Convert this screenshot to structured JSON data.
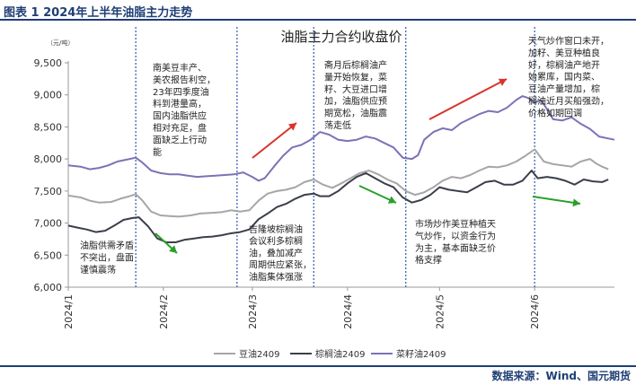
{
  "header": {
    "title": "图表 1  2024年上半年油脂主力走势"
  },
  "footer": {
    "source": "数据来源：Wind、国元期货"
  },
  "colors": {
    "brand": "#1f3f74",
    "soy": "#a6a6a6",
    "palm": "#3a3f4a",
    "rape": "#7b73b5",
    "arrow_up": "#d8342c",
    "arrow_down": "#2aa02b",
    "divider": "#3d63b6"
  },
  "chart_data": {
    "type": "line",
    "title": "油脂主力合约收盘价",
    "ylabel": "（元/吨）",
    "ylim": [
      6000,
      9500
    ],
    "yticks": [
      "6,000",
      "6,500",
      "7,000",
      "7,500",
      "8,000",
      "8,500",
      "9,000",
      "9,500"
    ],
    "xticks": [
      "2024/1",
      "2024/2",
      "2024/3",
      "2024/4",
      "2024/5",
      "2024/6"
    ],
    "xlim_days": [
      0,
      178
    ],
    "tick_days": [
      0,
      31,
      60,
      91,
      121,
      152
    ],
    "divider_days": [
      22,
      55,
      80,
      110,
      152
    ],
    "grid": false,
    "legend_position": "bottom",
    "series": [
      {
        "name": "豆油2409",
        "points": [
          [
            0,
            7430
          ],
          [
            4,
            7400
          ],
          [
            7,
            7350
          ],
          [
            10,
            7320
          ],
          [
            14,
            7330
          ],
          [
            17,
            7380
          ],
          [
            20,
            7420
          ],
          [
            22,
            7450
          ],
          [
            24,
            7360
          ],
          [
            27,
            7180
          ],
          [
            30,
            7120
          ],
          [
            33,
            7110
          ],
          [
            36,
            7100
          ],
          [
            40,
            7120
          ],
          [
            43,
            7150
          ],
          [
            47,
            7160
          ],
          [
            50,
            7170
          ],
          [
            53,
            7200
          ],
          [
            56,
            7180
          ],
          [
            59,
            7200
          ],
          [
            62,
            7350
          ],
          [
            65,
            7460
          ],
          [
            68,
            7500
          ],
          [
            71,
            7520
          ],
          [
            74,
            7560
          ],
          [
            77,
            7640
          ],
          [
            80,
            7680
          ],
          [
            83,
            7600
          ],
          [
            86,
            7550
          ],
          [
            89,
            7620
          ],
          [
            92,
            7700
          ],
          [
            95,
            7780
          ],
          [
            98,
            7820
          ],
          [
            101,
            7760
          ],
          [
            104,
            7680
          ],
          [
            107,
            7620
          ],
          [
            110,
            7500
          ],
          [
            113,
            7440
          ],
          [
            116,
            7480
          ],
          [
            119,
            7560
          ],
          [
            122,
            7660
          ],
          [
            125,
            7720
          ],
          [
            128,
            7700
          ],
          [
            131,
            7750
          ],
          [
            134,
            7820
          ],
          [
            137,
            7880
          ],
          [
            140,
            7870
          ],
          [
            143,
            7900
          ],
          [
            146,
            7960
          ],
          [
            149,
            8050
          ],
          [
            152,
            8150
          ],
          [
            155,
            7960
          ],
          [
            158,
            7920
          ],
          [
            161,
            7900
          ],
          [
            164,
            7880
          ],
          [
            167,
            7960
          ],
          [
            170,
            8000
          ],
          [
            172,
            7930
          ],
          [
            174,
            7880
          ],
          [
            176,
            7840
          ]
        ]
      },
      {
        "name": "棕榈油2409",
        "points": [
          [
            0,
            6960
          ],
          [
            3,
            6930
          ],
          [
            6,
            6900
          ],
          [
            9,
            6860
          ],
          [
            12,
            6880
          ],
          [
            15,
            6960
          ],
          [
            18,
            7050
          ],
          [
            21,
            7080
          ],
          [
            23,
            7090
          ],
          [
            26,
            6950
          ],
          [
            29,
            6760
          ],
          [
            32,
            6700
          ],
          [
            35,
            6700
          ],
          [
            38,
            6740
          ],
          [
            41,
            6760
          ],
          [
            44,
            6780
          ],
          [
            47,
            6790
          ],
          [
            50,
            6810
          ],
          [
            53,
            6840
          ],
          [
            56,
            6860
          ],
          [
            59,
            6900
          ],
          [
            62,
            7060
          ],
          [
            65,
            7150
          ],
          [
            68,
            7250
          ],
          [
            71,
            7300
          ],
          [
            74,
            7380
          ],
          [
            77,
            7440
          ],
          [
            80,
            7460
          ],
          [
            82,
            7420
          ],
          [
            85,
            7420
          ],
          [
            88,
            7500
          ],
          [
            91,
            7620
          ],
          [
            94,
            7720
          ],
          [
            97,
            7780
          ],
          [
            100,
            7700
          ],
          [
            103,
            7620
          ],
          [
            106,
            7560
          ],
          [
            109,
            7400
          ],
          [
            112,
            7320
          ],
          [
            115,
            7360
          ],
          [
            118,
            7440
          ],
          [
            121,
            7560
          ],
          [
            124,
            7520
          ],
          [
            127,
            7500
          ],
          [
            130,
            7480
          ],
          [
            133,
            7560
          ],
          [
            136,
            7640
          ],
          [
            139,
            7660
          ],
          [
            142,
            7600
          ],
          [
            145,
            7600
          ],
          [
            148,
            7660
          ],
          [
            151,
            7820
          ],
          [
            153,
            7700
          ],
          [
            156,
            7720
          ],
          [
            159,
            7700
          ],
          [
            162,
            7660
          ],
          [
            165,
            7600
          ],
          [
            168,
            7680
          ],
          [
            171,
            7650
          ],
          [
            174,
            7640
          ],
          [
            176,
            7680
          ]
        ]
      },
      {
        "name": "菜籽油2409",
        "points": [
          [
            0,
            7900
          ],
          [
            4,
            7880
          ],
          [
            7,
            7840
          ],
          [
            10,
            7860
          ],
          [
            13,
            7900
          ],
          [
            16,
            7960
          ],
          [
            19,
            7990
          ],
          [
            22,
            8020
          ],
          [
            24,
            7950
          ],
          [
            27,
            7820
          ],
          [
            30,
            7780
          ],
          [
            33,
            7760
          ],
          [
            36,
            7760
          ],
          [
            39,
            7740
          ],
          [
            42,
            7720
          ],
          [
            45,
            7730
          ],
          [
            48,
            7740
          ],
          [
            51,
            7750
          ],
          [
            54,
            7760
          ],
          [
            57,
            7790
          ],
          [
            60,
            7720
          ],
          [
            62,
            7660
          ],
          [
            64,
            7700
          ],
          [
            67,
            7880
          ],
          [
            70,
            8050
          ],
          [
            73,
            8180
          ],
          [
            76,
            8220
          ],
          [
            79,
            8300
          ],
          [
            82,
            8420
          ],
          [
            85,
            8380
          ],
          [
            88,
            8300
          ],
          [
            91,
            8280
          ],
          [
            94,
            8300
          ],
          [
            97,
            8350
          ],
          [
            100,
            8320
          ],
          [
            103,
            8250
          ],
          [
            106,
            8180
          ],
          [
            109,
            8020
          ],
          [
            112,
            8000
          ],
          [
            114,
            8060
          ],
          [
            116,
            8300
          ],
          [
            119,
            8420
          ],
          [
            122,
            8480
          ],
          [
            125,
            8450
          ],
          [
            128,
            8560
          ],
          [
            131,
            8630
          ],
          [
            134,
            8700
          ],
          [
            137,
            8750
          ],
          [
            140,
            8730
          ],
          [
            143,
            8800
          ],
          [
            146,
            8920
          ],
          [
            148,
            8980
          ],
          [
            150,
            8950
          ],
          [
            152,
            8880
          ],
          [
            154,
            8920
          ],
          [
            156,
            8780
          ],
          [
            158,
            8620
          ],
          [
            161,
            8600
          ],
          [
            164,
            8650
          ],
          [
            167,
            8550
          ],
          [
            170,
            8470
          ],
          [
            173,
            8350
          ],
          [
            176,
            8320
          ],
          [
            178,
            8300
          ]
        ]
      }
    ],
    "annotations": [
      {
        "text": "南美豆丰产、美农报告利空，23年四季度油料到港量高，国内油脂供应相对充足，盘面缺乏上行动能",
        "lines": [
          "南美豆丰产、",
          "美农报告利空，",
          "23年四季度油",
          "料到港量高，",
          "国内油脂供应",
          "相对充足，盘",
          "面缺乏上行动",
          "能"
        ]
      },
      {
        "text": "油脂供需矛盾不突出，盘面谨慎震荡",
        "lines": [
          "油脂供需矛盾",
          "不突出，盘面",
          "谨慎震荡"
        ]
      },
      {
        "text": "吉隆坡棕榈油会议利多棕榈油，叠加减产周期供应紧张，油脂集体强涨",
        "lines": [
          "吉隆坡棕榈油",
          "会议利多棕榈",
          "油，叠加减产",
          "周期供应紧张，",
          "油脂集体强涨"
        ]
      },
      {
        "text": "斋月后棕榈油产量开始恢复，菜籽、大豆进口增加，油脂供应预期宽松，油脂震荡走低",
        "lines": [
          "斋月后棕榈油产",
          "量开始恢复，菜",
          "籽、大豆进口增",
          "加，油脂供应预",
          "期宽松，油脂震",
          "荡走低"
        ]
      },
      {
        "text": "市场炒作美豆种植天气炒作，以资金行为为主，基本面缺乏价格支撑",
        "lines": [
          "市场炒作美豆种植天",
          "气炒作，以资金行为",
          "为主，基本面缺乏价",
          "格支撑"
        ]
      },
      {
        "text": "天气炒作窗口未开，加籽、美豆种植良好，棕榈油产地开始累库，国内菜、豆油产量增加，棕榈油近月买船强劲，价格如期回调",
        "lines": [
          "天气炒作窗口未开，",
          "加籽、美豆种植良",
          "好，棕榈油产地开",
          "始累库，国内菜、",
          "豆油产量增加，棕",
          "榈油近月买船强劲，",
          "价格如期回调"
        ]
      }
    ]
  }
}
